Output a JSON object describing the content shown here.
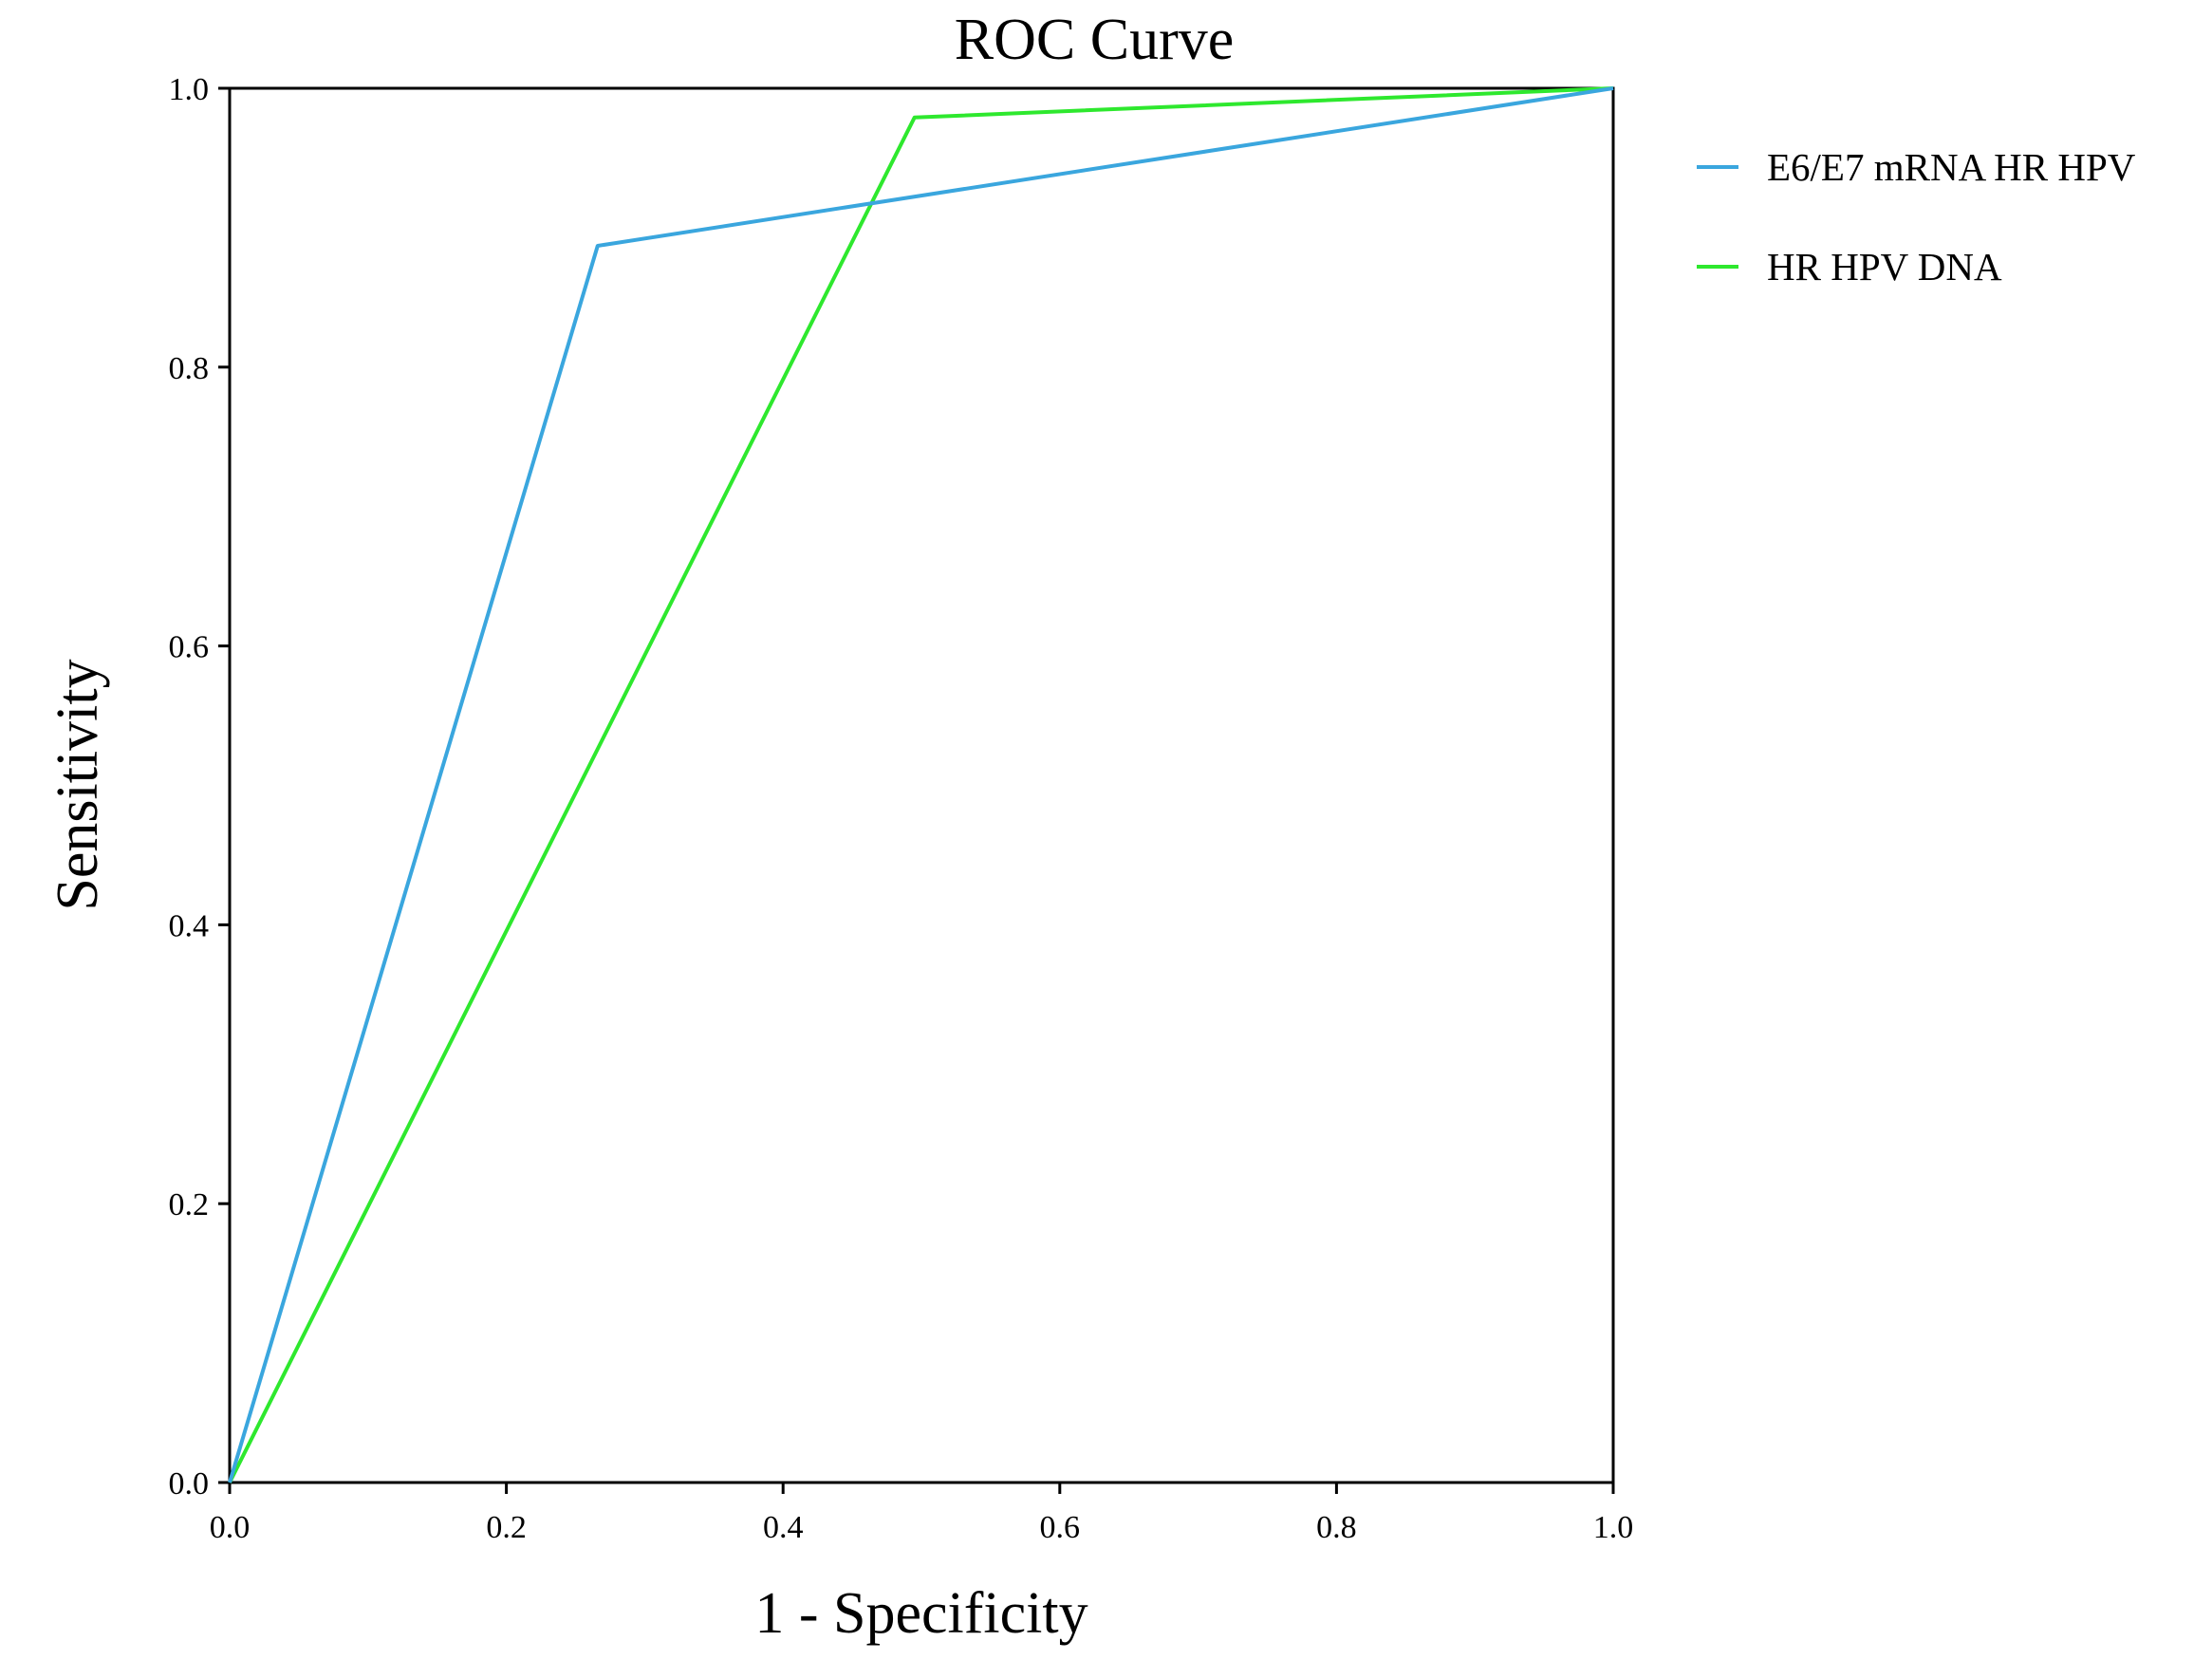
{
  "chart_data": {
    "type": "line",
    "title": "ROC Curve",
    "xlabel": "1 - Specificity",
    "ylabel": "Sensitivity",
    "xlim": [
      0,
      1
    ],
    "ylim": [
      0,
      1
    ],
    "grid": false,
    "legend_position": "right",
    "x_ticks": [
      "0.0",
      "0.2",
      "0.4",
      "0.6",
      "0.8",
      "1.0"
    ],
    "y_ticks": [
      "0.0",
      "0.2",
      "0.4",
      "0.6",
      "0.8",
      "1.0"
    ],
    "series": [
      {
        "name": "E6/E7 mRNA HR HPV",
        "color": "#3aa6de",
        "x": [
          0.0,
          0.266,
          1.0
        ],
        "y": [
          0.0,
          0.887,
          1.0
        ]
      },
      {
        "name": "HR HPV DNA",
        "color": "#2ee82e",
        "x": [
          0.0,
          0.495,
          1.0
        ],
        "y": [
          0.0,
          0.979,
          1.0
        ]
      }
    ]
  }
}
